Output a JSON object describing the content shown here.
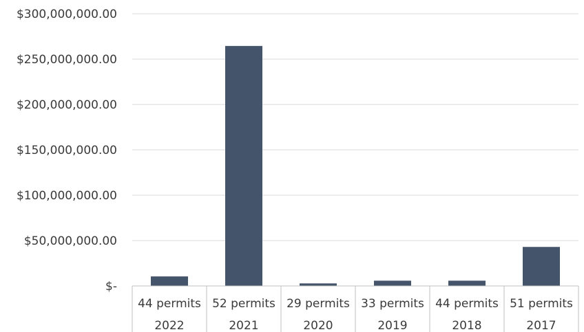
{
  "chart_data": {
    "type": "bar",
    "title": "",
    "xlabel": "",
    "ylabel": "",
    "categories": [
      {
        "year": "2022",
        "permits": "44 permits"
      },
      {
        "year": "2021",
        "permits": "52 permits"
      },
      {
        "year": "2020",
        "permits": "29 permits"
      },
      {
        "year": "2019",
        "permits": "33 permits"
      },
      {
        "year": "2018",
        "permits": "44 permits"
      },
      {
        "year": "2017",
        "permits": "51 permits"
      }
    ],
    "values": [
      10500000,
      264500000,
      2800000,
      5800000,
      5800000,
      43000000
    ],
    "ylim": [
      0,
      300000000
    ],
    "yticks": [
      {
        "value": 300000000,
        "label": "$300,000,000.00"
      },
      {
        "value": 250000000,
        "label": "$250,000,000.00"
      },
      {
        "value": 200000000,
        "label": "$200,000,000.00"
      },
      {
        "value": 150000000,
        "label": "$150,000,000.00"
      },
      {
        "value": 100000000,
        "label": "$100,000,000.00"
      },
      {
        "value": 50000000,
        "label": "$50,000,000.00"
      },
      {
        "value": 0,
        "label": "$-"
      }
    ],
    "grid": true,
    "bar_color": "#44546a"
  }
}
